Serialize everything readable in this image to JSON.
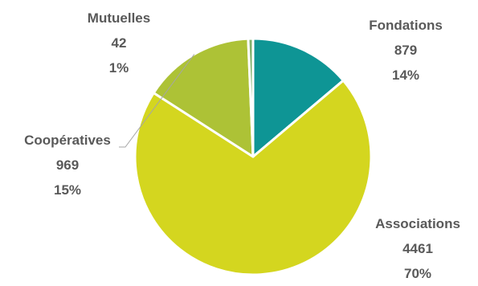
{
  "chart_data": {
    "type": "pie",
    "title": "",
    "slices": [
      {
        "name": "Fondations",
        "value": 879,
        "percent": "14%",
        "color": "#0e9595"
      },
      {
        "name": "Associations",
        "value": 4461,
        "percent": "70%",
        "color": "#d4d61f"
      },
      {
        "name": "Coopératives",
        "value": 969,
        "percent": "15%",
        "color": "#adc236"
      },
      {
        "name": "Mutuelles",
        "value": 42,
        "percent": "1%",
        "color": "#7fb06a"
      }
    ],
    "start_angle_deg": 0,
    "direction": "clockwise",
    "separator_color": "#ffffff",
    "label_color": "#595959"
  }
}
